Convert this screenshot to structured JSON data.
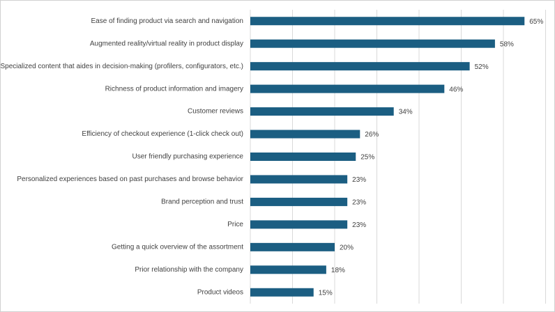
{
  "chart_data": {
    "type": "bar",
    "orientation": "horizontal",
    "categories": [
      "Ease of finding product via search and navigation",
      "Augmented reality/virtual reality in product display",
      "Specialized content that aides in decision-making (profilers, configurators, etc.)",
      "Richness of product information and imagery",
      "Customer reviews",
      "Efficiency of checkout experience (1-click check out)",
      "User friendly purchasing experience",
      "Personalized experiences based on past purchases and browse behavior",
      "Brand perception and trust",
      "Price",
      "Getting a quick overview of the assortment",
      "Prior relationship with the company",
      "Product videos"
    ],
    "values": [
      65,
      58,
      52,
      46,
      34,
      26,
      25,
      23,
      23,
      23,
      20,
      18,
      15
    ],
    "value_labels": [
      "65%",
      "58%",
      "52%",
      "46%",
      "34%",
      "26%",
      "25%",
      "23%",
      "23%",
      "23%",
      "20%",
      "18%",
      "15%"
    ],
    "color": "#1b5e82",
    "xlim": [
      0,
      70
    ],
    "xticks": [
      0,
      10,
      20,
      30,
      40,
      50,
      60,
      70
    ],
    "grid": true
  }
}
